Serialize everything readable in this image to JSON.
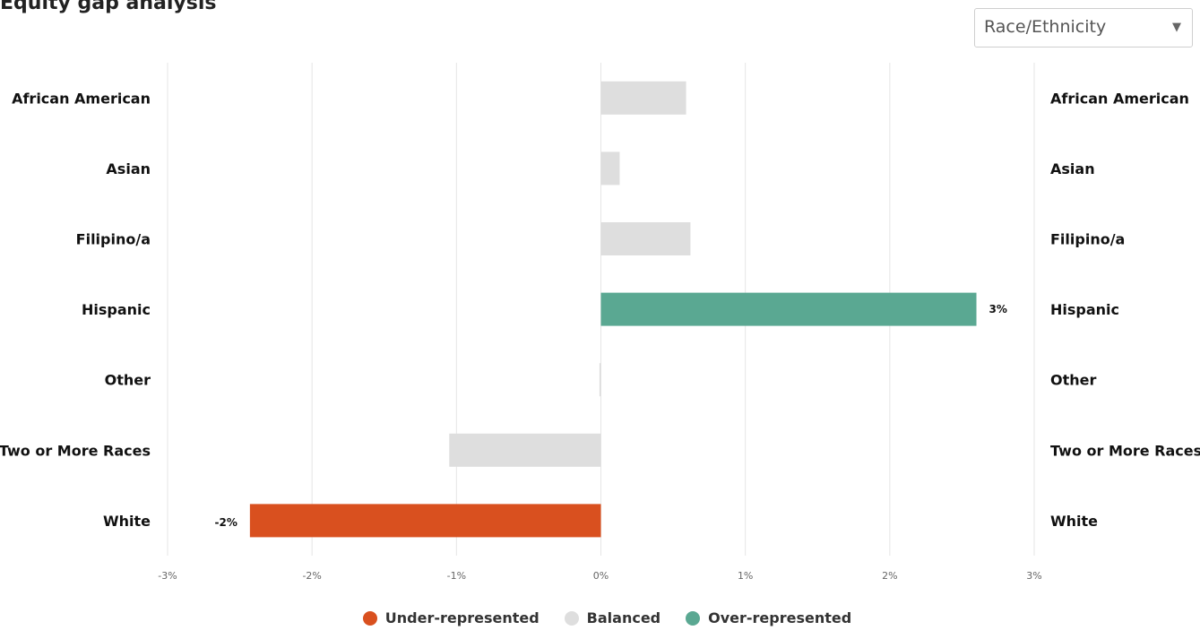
{
  "page": {
    "title": "Equity gap analysis"
  },
  "filter": {
    "selected": "Race/Ethnicity",
    "arrow_icon": "caret-down-icon"
  },
  "colors": {
    "under": "#d9501f",
    "balanced": "#dedede",
    "over": "#5aa892",
    "grid": "#e6e6e6"
  },
  "chart_data": {
    "type": "bar",
    "orientation": "horizontal",
    "categories": [
      "African American",
      "Asian",
      "Filipino/a",
      "Hispanic",
      "Other",
      "Two or More Races",
      "White"
    ],
    "values": [
      0.59,
      0.13,
      0.62,
      2.6,
      -0.01,
      -1.05,
      -2.43
    ],
    "status": [
      "balanced",
      "balanced",
      "balanced",
      "over",
      "balanced",
      "balanced",
      "under"
    ],
    "data_labels": [
      "",
      "",
      "",
      "3%",
      "",
      "",
      "-2%"
    ],
    "xlim": [
      -3,
      3
    ],
    "xticks": [
      "-3%",
      "-2%",
      "-1%",
      "0%",
      "1%",
      "2%",
      "3%"
    ],
    "grid": true,
    "category_labels_both_sides": true,
    "legend_position": "bottom"
  },
  "legend": [
    {
      "key": "under",
      "label": "Under-represented"
    },
    {
      "key": "balanced",
      "label": "Balanced"
    },
    {
      "key": "over",
      "label": "Over-represented"
    }
  ]
}
